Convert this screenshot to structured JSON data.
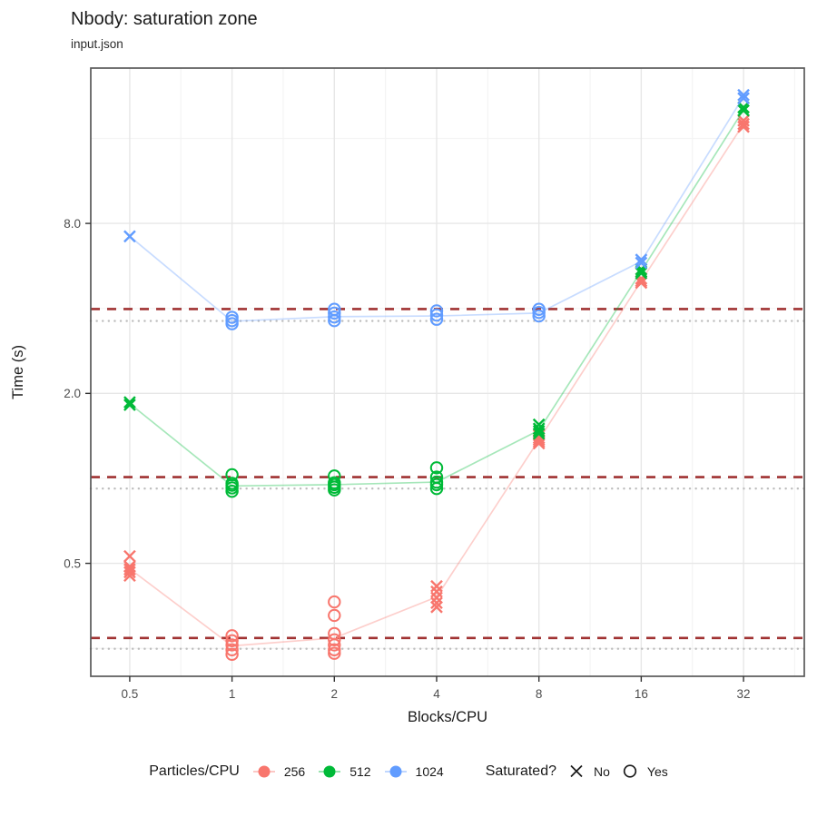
{
  "header": {
    "title": "Nbody: saturation zone",
    "subtitle": "input.json"
  },
  "chart_data": {
    "type": "scatter",
    "title": "Nbody: saturation zone",
    "subtitle": "input.json",
    "xlabel": "Blocks/CPU",
    "ylabel": "Time (s)",
    "x_scale": "log2",
    "y_scale": "log",
    "grid": true,
    "legend_position": "bottom",
    "xlim": [
      0.384,
      48.3
    ],
    "ylim": [
      0.199,
      28.4
    ],
    "x_ticks": [
      0.5,
      1,
      2,
      4,
      8,
      16,
      32
    ],
    "x_tick_labels": [
      "0.5",
      "1",
      "2",
      "4",
      "8",
      "16",
      "32"
    ],
    "y_ticks": [
      0.5,
      2.0,
      8.0
    ],
    "y_tick_labels": [
      "0.5",
      "2.0",
      "8.0"
    ],
    "x_minor": [
      0.7071,
      1.4142,
      2.8284,
      5.6569,
      11.3137,
      22.6274,
      45.2548
    ],
    "y_minor": [
      0.25,
      1,
      4,
      16
    ],
    "threshold_lines_dashed": {
      "color": "#A03232",
      "values": [
        3.98,
        1.01,
        0.272
      ]
    },
    "min_lines_dotted": {
      "color": "#BDBDBD",
      "values": [
        3.61,
        0.92,
        0.249
      ]
    },
    "series": [
      {
        "name": "256",
        "color": "#F8766D",
        "line": [
          [
            0.5,
            0.478
          ],
          [
            1,
            0.255
          ],
          [
            2,
            0.272
          ],
          [
            4,
            0.38
          ],
          [
            8,
            1.37
          ],
          [
            16,
            5.0
          ],
          [
            32,
            18.0
          ]
        ],
        "points": [
          {
            "x": 0.5,
            "y": 0.53,
            "saturated": false
          },
          {
            "x": 0.5,
            "y": 0.487,
            "saturated": false
          },
          {
            "x": 0.5,
            "y": 0.476,
            "saturated": false
          },
          {
            "x": 0.5,
            "y": 0.465,
            "saturated": false
          },
          {
            "x": 0.5,
            "y": 0.452,
            "saturated": false
          },
          {
            "x": 1,
            "y": 0.277,
            "saturated": true
          },
          {
            "x": 1,
            "y": 0.266,
            "saturated": true
          },
          {
            "x": 1,
            "y": 0.257,
            "saturated": true
          },
          {
            "x": 1,
            "y": 0.247,
            "saturated": true
          },
          {
            "x": 1,
            "y": 0.238,
            "saturated": true
          },
          {
            "x": 2,
            "y": 0.365,
            "saturated": true
          },
          {
            "x": 2,
            "y": 0.327,
            "saturated": true
          },
          {
            "x": 2,
            "y": 0.282,
            "saturated": true
          },
          {
            "x": 2,
            "y": 0.268,
            "saturated": true
          },
          {
            "x": 2,
            "y": 0.257,
            "saturated": true
          },
          {
            "x": 2,
            "y": 0.247,
            "saturated": true
          },
          {
            "x": 2,
            "y": 0.24,
            "saturated": true
          },
          {
            "x": 4,
            "y": 0.415,
            "saturated": false
          },
          {
            "x": 4,
            "y": 0.397,
            "saturated": false
          },
          {
            "x": 4,
            "y": 0.378,
            "saturated": false
          },
          {
            "x": 4,
            "y": 0.362,
            "saturated": false
          },
          {
            "x": 4,
            "y": 0.35,
            "saturated": false
          },
          {
            "x": 8,
            "y": 1.42,
            "saturated": false
          },
          {
            "x": 8,
            "y": 1.39,
            "saturated": false
          },
          {
            "x": 8,
            "y": 1.37,
            "saturated": false
          },
          {
            "x": 8,
            "y": 1.35,
            "saturated": false
          },
          {
            "x": 8,
            "y": 1.33,
            "saturated": false
          },
          {
            "x": 16,
            "y": 5.1,
            "saturated": false
          },
          {
            "x": 16,
            "y": 5.0,
            "saturated": false
          },
          {
            "x": 16,
            "y": 4.93,
            "saturated": false
          },
          {
            "x": 32,
            "y": 18.5,
            "saturated": false
          },
          {
            "x": 32,
            "y": 18.0,
            "saturated": false
          },
          {
            "x": 32,
            "y": 17.6,
            "saturated": false
          }
        ]
      },
      {
        "name": "512",
        "color": "#00BA38",
        "line": [
          [
            0.5,
            1.84
          ],
          [
            1,
            0.94
          ],
          [
            2,
            0.95
          ],
          [
            4,
            0.97
          ],
          [
            8,
            1.48
          ],
          [
            16,
            5.42
          ],
          [
            32,
            20.2
          ]
        ],
        "points": [
          {
            "x": 0.5,
            "y": 1.86,
            "saturated": false
          },
          {
            "x": 0.5,
            "y": 1.82,
            "saturated": false
          },
          {
            "x": 1,
            "y": 1.03,
            "saturated": true
          },
          {
            "x": 1,
            "y": 0.96,
            "saturated": true
          },
          {
            "x": 1,
            "y": 0.945,
            "saturated": true
          },
          {
            "x": 1,
            "y": 0.925,
            "saturated": true
          },
          {
            "x": 1,
            "y": 0.9,
            "saturated": true
          },
          {
            "x": 2,
            "y": 1.02,
            "saturated": true
          },
          {
            "x": 2,
            "y": 0.965,
            "saturated": true
          },
          {
            "x": 2,
            "y": 0.95,
            "saturated": true
          },
          {
            "x": 2,
            "y": 0.93,
            "saturated": true
          },
          {
            "x": 2,
            "y": 0.91,
            "saturated": true
          },
          {
            "x": 4,
            "y": 1.09,
            "saturated": true
          },
          {
            "x": 4,
            "y": 1.01,
            "saturated": true
          },
          {
            "x": 4,
            "y": 0.97,
            "saturated": true
          },
          {
            "x": 4,
            "y": 0.95,
            "saturated": true
          },
          {
            "x": 4,
            "y": 0.92,
            "saturated": true
          },
          {
            "x": 8,
            "y": 1.55,
            "saturated": false
          },
          {
            "x": 8,
            "y": 1.5,
            "saturated": false
          },
          {
            "x": 8,
            "y": 1.47,
            "saturated": false
          },
          {
            "x": 8,
            "y": 1.44,
            "saturated": false
          },
          {
            "x": 16,
            "y": 5.5,
            "saturated": false
          },
          {
            "x": 16,
            "y": 5.4,
            "saturated": false
          },
          {
            "x": 16,
            "y": 5.33,
            "saturated": false
          },
          {
            "x": 32,
            "y": 20.6,
            "saturated": false
          },
          {
            "x": 32,
            "y": 20.1,
            "saturated": false
          }
        ]
      },
      {
        "name": "1024",
        "color": "#619CFF",
        "line": [
          [
            0.5,
            7.2
          ],
          [
            1,
            3.6
          ],
          [
            2,
            3.74
          ],
          [
            4,
            3.76
          ],
          [
            8,
            3.85
          ],
          [
            16,
            5.87
          ],
          [
            32,
            22.5
          ]
        ],
        "points": [
          {
            "x": 0.5,
            "y": 7.2,
            "saturated": false
          },
          {
            "x": 1,
            "y": 3.72,
            "saturated": true
          },
          {
            "x": 1,
            "y": 3.62,
            "saturated": true
          },
          {
            "x": 1,
            "y": 3.53,
            "saturated": true
          },
          {
            "x": 2,
            "y": 3.97,
            "saturated": true
          },
          {
            "x": 2,
            "y": 3.85,
            "saturated": true
          },
          {
            "x": 2,
            "y": 3.73,
            "saturated": true
          },
          {
            "x": 2,
            "y": 3.62,
            "saturated": true
          },
          {
            "x": 4,
            "y": 3.92,
            "saturated": true
          },
          {
            "x": 4,
            "y": 3.79,
            "saturated": true
          },
          {
            "x": 4,
            "y": 3.66,
            "saturated": true
          },
          {
            "x": 8,
            "y": 3.97,
            "saturated": true
          },
          {
            "x": 8,
            "y": 3.87,
            "saturated": true
          },
          {
            "x": 8,
            "y": 3.76,
            "saturated": true
          },
          {
            "x": 16,
            "y": 5.95,
            "saturated": false
          },
          {
            "x": 16,
            "y": 5.8,
            "saturated": false
          },
          {
            "x": 32,
            "y": 22.8,
            "saturated": false
          },
          {
            "x": 32,
            "y": 22.2,
            "saturated": false
          }
        ]
      }
    ]
  },
  "legend": {
    "color_title": "Particles/CPU",
    "color_items": [
      {
        "label": "256",
        "color": "#F8766D"
      },
      {
        "label": "512",
        "color": "#00BA38"
      },
      {
        "label": "1024",
        "color": "#619CFF"
      }
    ],
    "shape_title": "Saturated?",
    "shape_items": [
      {
        "label": "No",
        "shape": "x"
      },
      {
        "label": "Yes",
        "shape": "circle"
      }
    ]
  }
}
